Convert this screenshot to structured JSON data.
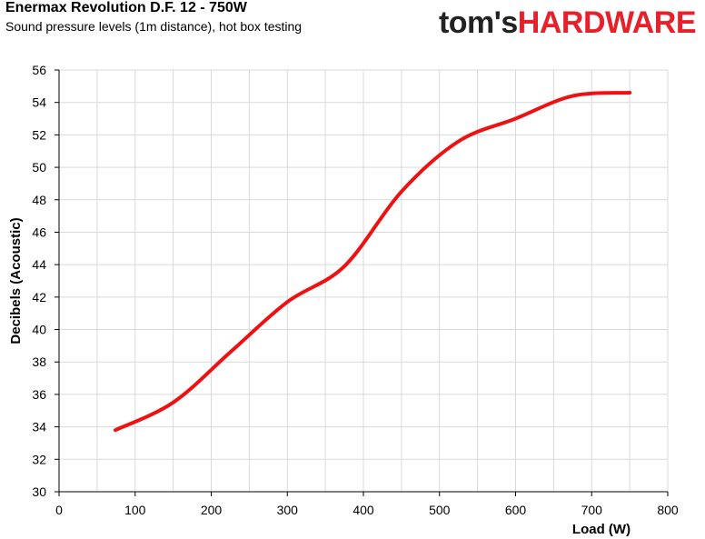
{
  "header": {
    "title": "Enermax Revolution D.F. 12 - 750W",
    "subtitle": "Sound pressure levels (1m distance), hot box testing",
    "logo_part1": "tom's",
    "logo_part2": "HARDWARE"
  },
  "colors": {
    "series": "#ee1111",
    "grid": "#d9d9d9",
    "axis": "#000000",
    "logo_dark": "#222222",
    "logo_red": "#e8202a"
  },
  "chart_data": {
    "type": "line",
    "title": "Enermax Revolution D.F. 12 - 750W",
    "subtitle": "Sound pressure levels (1m distance), hot box testing",
    "xlabel": "Load (W)",
    "ylabel": "Decibels (Acoustic)",
    "xlim": [
      0,
      800
    ],
    "ylim": [
      30,
      56
    ],
    "x_ticks": [
      0,
      100,
      200,
      300,
      400,
      500,
      600,
      700,
      800
    ],
    "y_ticks": [
      30,
      32,
      34,
      36,
      38,
      40,
      42,
      44,
      46,
      48,
      50,
      52,
      54,
      56
    ],
    "grid": true,
    "legend": "none",
    "series": [
      {
        "x": [
          74,
          150,
          225,
          300,
          375,
          450,
          525,
          600,
          675,
          750
        ],
        "y": [
          33.8,
          35.5,
          38.6,
          41.7,
          43.9,
          48.5,
          51.6,
          53.0,
          54.4,
          54.6
        ]
      }
    ]
  }
}
